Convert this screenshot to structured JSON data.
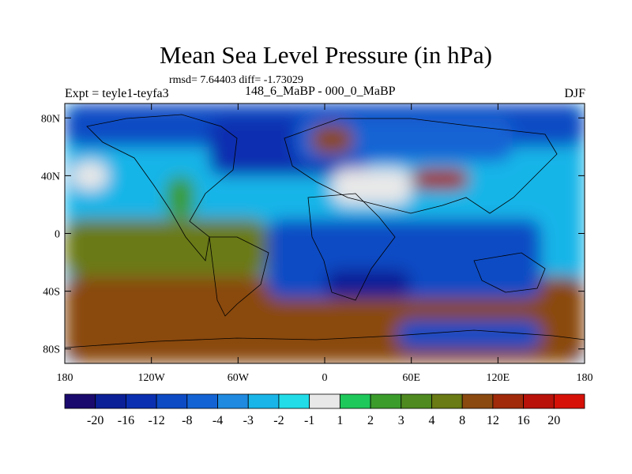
{
  "chart_data": {
    "type": "heatmap",
    "title": "Mean Sea Level Pressure (in hPa)",
    "stats_text": "rmsd= 7.64403 diff= -1.73029",
    "left_label": "Expt = teyle1-teyfa3",
    "center_label": "148_6_MaBP - 000_0_MaBP",
    "right_label": "DJF",
    "x_range": [
      -180,
      180
    ],
    "y_range": [
      -90,
      90
    ],
    "x_ticks": [
      {
        "value": -180,
        "label": "180"
      },
      {
        "value": -120,
        "label": "120W"
      },
      {
        "value": -60,
        "label": "60W"
      },
      {
        "value": 0,
        "label": "0"
      },
      {
        "value": 60,
        "label": "60E"
      },
      {
        "value": 120,
        "label": "120E"
      },
      {
        "value": 180,
        "label": "180"
      }
    ],
    "y_ticks": [
      {
        "value": 80,
        "label": "80N"
      },
      {
        "value": 40,
        "label": "40N"
      },
      {
        "value": 0,
        "label": "0"
      },
      {
        "value": -40,
        "label": "40S"
      },
      {
        "value": -80,
        "label": "80S"
      }
    ],
    "colorbar": {
      "colors": [
        "#1a0a6e",
        "#0b1f96",
        "#0a2fb0",
        "#0c4bc4",
        "#1463d4",
        "#1f8ae0",
        "#19b5e8",
        "#22dde8",
        "#e8e8e8",
        "#1ec85a",
        "#3b9c2c",
        "#4e8a1f",
        "#6a7a14",
        "#8a4a10",
        "#a02a0a",
        "#b8120a",
        "#d61208"
      ],
      "labels": [
        "-20",
        "-16",
        "-12",
        "-8",
        "-4",
        "-3",
        "-2",
        "-1",
        "1",
        "2",
        "3",
        "4",
        "8",
        "12",
        "16",
        "20"
      ]
    },
    "field_regions": [
      {
        "lon_range": [
          -180,
          180
        ],
        "lat_range": [
          -90,
          90
        ],
        "value": -2.5
      },
      {
        "lon_range": [
          -180,
          180
        ],
        "lat_range": [
          60,
          90
        ],
        "value": -12
      },
      {
        "lon_range": [
          -80,
          30
        ],
        "lat_range": [
          40,
          80
        ],
        "value": -16
      },
      {
        "lon_range": [
          -180,
          180
        ],
        "lat_range": [
          -90,
          -30
        ],
        "value": 9
      },
      {
        "lon_range": [
          -180,
          -40
        ],
        "lat_range": [
          -30,
          10
        ],
        "value": 7
      },
      {
        "lon_range": [
          -40,
          150
        ],
        "lat_range": [
          -45,
          10
        ],
        "value": -11
      },
      {
        "lon_range": [
          0,
          60
        ],
        "lat_range": [
          -45,
          -25
        ],
        "value": -18
      },
      {
        "lon_range": [
          50,
          150
        ],
        "lat_range": [
          -80,
          -60
        ],
        "value": -10
      },
      {
        "lon_range": [
          -20,
          130
        ],
        "lat_range": [
          50,
          80
        ],
        "value": -6
      },
      {
        "lon_range": [
          -10,
          20
        ],
        "lat_range": [
          55,
          75
        ],
        "value": 9
      },
      {
        "lon_range": [
          5,
          60
        ],
        "lat_range": [
          20,
          45
        ],
        "value": 0
      },
      {
        "lon_range": [
          60,
          100
        ],
        "lat_range": [
          30,
          45
        ],
        "value": 12
      },
      {
        "lon_range": [
          -175,
          -150
        ],
        "lat_range": [
          30,
          50
        ],
        "value": 0
      },
      {
        "lon_range": [
          -110,
          -90
        ],
        "lat_range": [
          10,
          40
        ],
        "value": 2
      }
    ]
  }
}
